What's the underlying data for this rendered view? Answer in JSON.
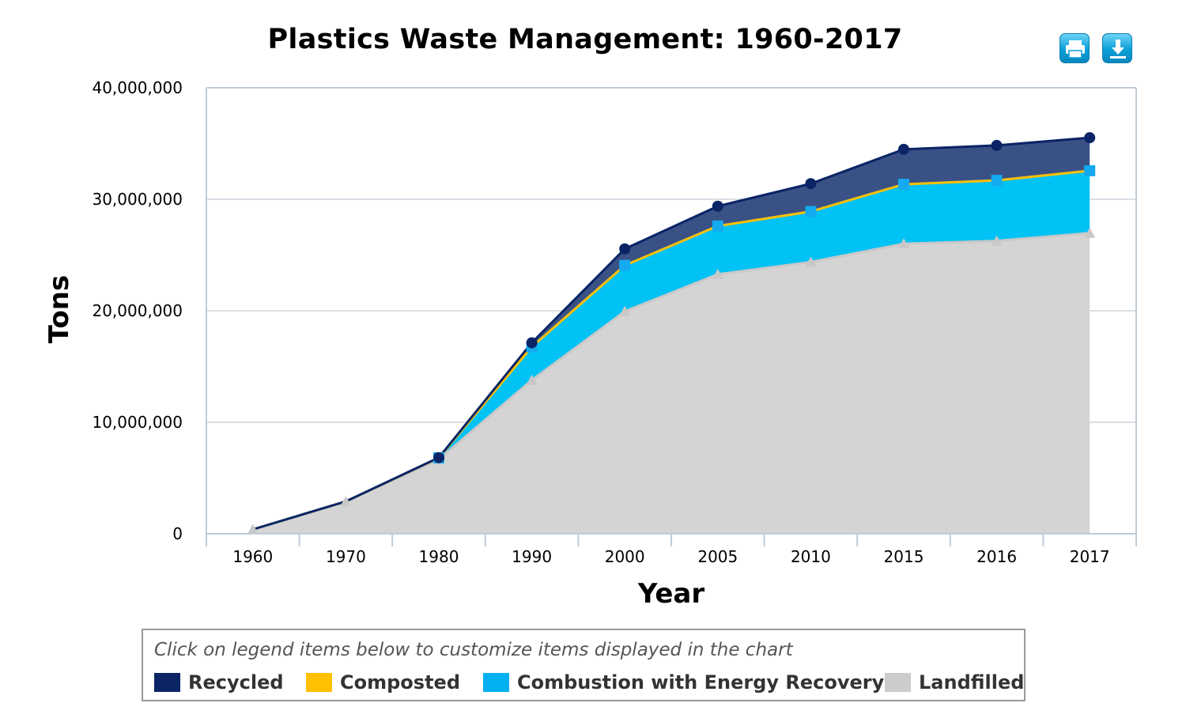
{
  "title": "Plastics Waste Management: 1960-2017",
  "toolbar": {
    "print_icon": "printer-icon",
    "download_icon": "download-icon"
  },
  "legend": {
    "hint": "Click on legend items below to customize items displayed in the chart",
    "items": [
      {
        "label": "Recycled",
        "color": "#0a2466"
      },
      {
        "label": "Composted",
        "color": "#ffc000"
      },
      {
        "label": "Combustion with Energy Recovery",
        "color": "#00b0f0"
      },
      {
        "label": "Landfilled",
        "color": "#cccccc"
      }
    ]
  },
  "chart_data": {
    "type": "area",
    "stacked": true,
    "title": "Plastics Waste Management: 1960-2017",
    "xlabel": "Year",
    "ylabel": "Tons",
    "categories": [
      "1960",
      "1970",
      "1980",
      "1990",
      "2000",
      "2005",
      "2010",
      "2015",
      "2016",
      "2017"
    ],
    "ylim": [
      0,
      40000000
    ],
    "yticks": [
      0,
      10000000,
      20000000,
      30000000,
      40000000
    ],
    "ytick_labels": [
      "0",
      "10,000,000",
      "20,000,000",
      "30,000,000",
      "40,000,000"
    ],
    "grid": true,
    "legend_position": "bottom",
    "series": [
      {
        "name": "Landfilled",
        "color": "#cccccc",
        "values": [
          390000,
          2900000,
          6670000,
          13780000,
          19950000,
          23270000,
          24370000,
          26010000,
          26270000,
          26970000
        ]
      },
      {
        "name": "Combustion with Energy Recovery",
        "color": "#00b0f0",
        "values": [
          0,
          0,
          140000,
          2980000,
          4120000,
          4330000,
          4530000,
          5330000,
          5420000,
          5590000
        ]
      },
      {
        "name": "Composted",
        "color": "#ffc000",
        "values": [
          0,
          0,
          0,
          0,
          0,
          0,
          0,
          0,
          0,
          0
        ]
      },
      {
        "name": "Recycled",
        "color": "#0a2466",
        "values": [
          0,
          0,
          20000,
          370000,
          1480000,
          1780000,
          2500000,
          3140000,
          3140000,
          2960000
        ]
      }
    ]
  }
}
